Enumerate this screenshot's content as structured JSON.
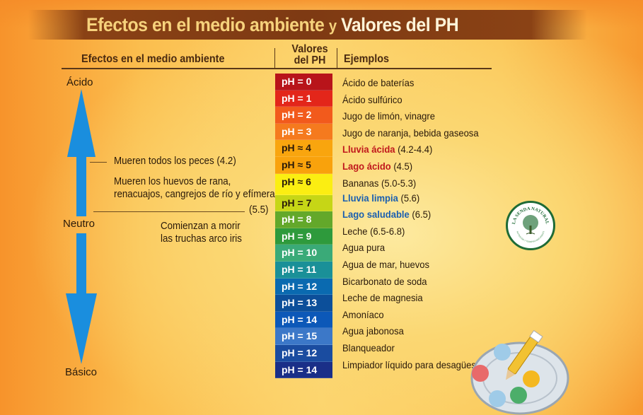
{
  "title": {
    "part1": "Efectos en el medio ambiente",
    "connector": "y",
    "part2": "Valores del PH"
  },
  "headers": {
    "effects": "Efectos en el medio ambiente",
    "values_line1": "Valores",
    "values_line2": "del PH",
    "examples": "Ejemplos"
  },
  "scale_labels": {
    "acid": "Ácido",
    "neutral": "Neutro",
    "basic": "Básico"
  },
  "effects": [
    {
      "text": "Mueren todos los peces (4.2)"
    },
    {
      "line1": "Mueren los huevos de rana,",
      "line2": "renacuajos, cangrejos de río y efímeras",
      "value": "(5.5)"
    },
    {
      "line1": "Comienzan a morir",
      "line2": "las truchas arco iris"
    }
  ],
  "ph_scale": [
    {
      "label": "pH = 0",
      "bg": "#b8141a",
      "fg": "#ffffff"
    },
    {
      "label": "pH = 1",
      "bg": "#e3261a",
      "fg": "#ffffff"
    },
    {
      "label": "pH = 2",
      "bg": "#f25a1c",
      "fg": "#ffffff"
    },
    {
      "label": "pH = 3",
      "bg": "#f57a1e",
      "fg": "#ffffff"
    },
    {
      "label": "pH ≈ 4",
      "bg": "#f9a50e",
      "fg": "#2a1a0a"
    },
    {
      "label": "pH ≈ 5",
      "bg": "#f9a20c",
      "fg": "#2a1a0a"
    },
    {
      "label": "pH ≈ 6",
      "bg": "#fbee12",
      "fg": "#2a1a0a"
    },
    {
      "label": "pH = 7",
      "bg": "#c6d616",
      "fg": "#2a1a0a"
    },
    {
      "label": "pH = 8",
      "bg": "#63a82a",
      "fg": "#ffffff"
    },
    {
      "label": "pH = 9",
      "bg": "#2e9a3c",
      "fg": "#ffffff"
    },
    {
      "label": "pH = 10",
      "bg": "#3aaa78",
      "fg": "#ffffff"
    },
    {
      "label": "pH = 11",
      "bg": "#1a9098",
      "fg": "#ffffff"
    },
    {
      "label": "pH = 12",
      "bg": "#0a6ab0",
      "fg": "#ffffff"
    },
    {
      "label": "pH = 13",
      "bg": "#0c4f9a",
      "fg": "#ffffff"
    },
    {
      "label": "pH = 14",
      "bg": "#0c58b8",
      "fg": "#ffffff"
    },
    {
      "label": "pH = 15",
      "bg": "#3c78c8",
      "fg": "#ffffff"
    },
    {
      "label": "pH = 12",
      "bg": "#1a4ca0",
      "fg": "#ffffff"
    },
    {
      "label": "pH = 14",
      "bg": "#1a2f88",
      "fg": "#ffffff"
    }
  ],
  "examples": [
    {
      "text": "Ácido de baterías"
    },
    {
      "text": "Ácido sulfúrico"
    },
    {
      "text": "Jugo de limón, vinagre"
    },
    {
      "text": "Jugo de naranja, bebida gaseosa"
    },
    {
      "highlight": "Lluvia ácida",
      "rest": " (4.2-4.4)",
      "color": "red"
    },
    {
      "highlight": "Lago ácido",
      "rest": " (4.5)",
      "color": "red"
    },
    {
      "text": "Bananas (5.0-5.3)"
    },
    {
      "highlight": "Lluvia limpia",
      "rest": " (5.6)",
      "color": "blue"
    },
    {
      "highlight": "Lago saludable",
      "rest": " (6.5)",
      "color": "blue"
    },
    {
      "text": "Leche (6.5-6.8)"
    },
    {
      "text": "Agua pura"
    },
    {
      "text": "Agua de mar, huevos"
    },
    {
      "text": "Bicarbonato de soda"
    },
    {
      "text": "Leche de magnesia"
    },
    {
      "text": "Amoníaco"
    },
    {
      "text": "Agua jabonosa"
    },
    {
      "text": "Blanqueador"
    },
    {
      "text": "Limpiador líquido para desagües"
    },
    {
      "text": ""
    }
  ],
  "logo": {
    "top_text": "LA SENDA NATURAL",
    "bottom_text": "NUTRICIÓN Y TERAPIAS NATURALES"
  },
  "colors": {
    "arrow": "#1a8ede",
    "banner": "#7e3a13",
    "header_text": "#4a2a10",
    "highlight_red": "#c0181c",
    "highlight_blue": "#1a5fb0"
  }
}
